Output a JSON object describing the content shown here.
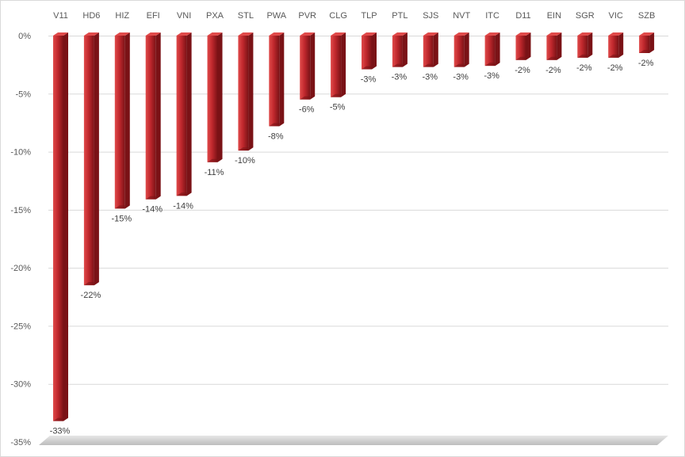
{
  "chart_data": {
    "type": "bar",
    "title": "",
    "xlabel": "",
    "ylabel": "",
    "categories": [
      "V11",
      "HD6",
      "HIZ",
      "EFI",
      "VNI",
      "PXA",
      "STL",
      "PWA",
      "PVR",
      "CLG",
      "TLP",
      "PTL",
      "SJS",
      "NVT",
      "ITC",
      "D11",
      "EIN",
      "SGR",
      "VIC",
      "SZB"
    ],
    "values": [
      -33.2,
      -21.5,
      -14.9,
      -14.1,
      -13.8,
      -10.9,
      -9.9,
      -7.8,
      -5.5,
      -5.3,
      -2.9,
      -2.7,
      -2.7,
      -2.7,
      -2.6,
      -2.1,
      -2.1,
      -1.9,
      -1.9,
      -1.5
    ],
    "data_labels": [
      "-33%",
      "-22%",
      "-15%",
      "-14%",
      "-14%",
      "-11%",
      "-10%",
      "-8%",
      "-6%",
      "-5%",
      "-3%",
      "-3%",
      "-3%",
      "-3%",
      "-3%",
      "-2%",
      "-2%",
      "-2%",
      "-2%",
      "-2%"
    ],
    "ylim": [
      -35,
      0
    ],
    "y_ticks": [
      0,
      -5,
      -10,
      -15,
      -20,
      -25,
      -30,
      -35
    ],
    "y_tick_labels": [
      "0%",
      "-5%",
      "-10%",
      "-15%",
      "-20%",
      "-25%",
      "-30%",
      "-35%"
    ],
    "category_axis_position": "top",
    "grid": true,
    "style": "3d-column",
    "colors": {
      "bar_light": "#e04a4a",
      "bar_main": "#c0282d",
      "bar_dark": "#7a1216",
      "grid": "#d9d9d9",
      "floor": "#d0d0d0"
    }
  }
}
